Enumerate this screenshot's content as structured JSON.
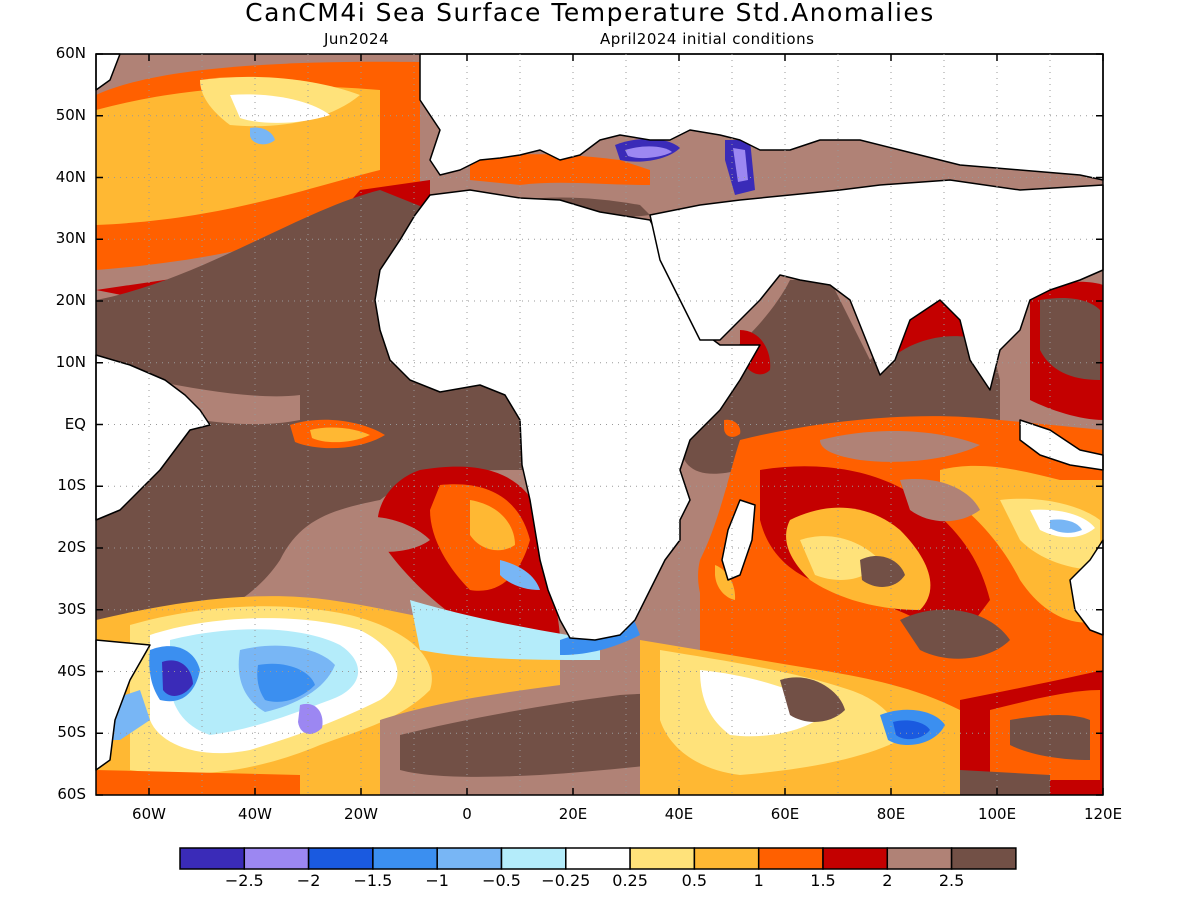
{
  "title": "CanCM4i Sea Surface Temperature Std.Anomalies",
  "valid_month": "Jun2024",
  "init_conditions": "April2024 initial conditions",
  "lat_ticks": [
    "60N",
    "50N",
    "40N",
    "30N",
    "20N",
    "10N",
    "EQ",
    "10S",
    "20S",
    "30S",
    "40S",
    "50S",
    "60S"
  ],
  "lon_ticks": [
    "60W",
    "40W",
    "20W",
    "0",
    "20E",
    "40E",
    "60E",
    "80E",
    "100E",
    "120E"
  ],
  "colorbar": {
    "colors": [
      "#3a2bb8",
      "#9c87f2",
      "#1a5ae0",
      "#3b8ff0",
      "#78b6f5",
      "#b4ecfa",
      "#ffffff",
      "#ffe27a",
      "#ffb833",
      "#ff6000",
      "#c40000",
      "#b08276",
      "#725046"
    ],
    "labels": [
      "−2.5",
      "−2",
      "−1.5",
      "−1",
      "−0.5",
      "−0.25",
      "0.25",
      "0.5",
      "1",
      "1.5",
      "2",
      "2.5"
    ]
  },
  "map": {
    "projection": "equirectangular",
    "lon_range": [
      -70,
      120
    ],
    "lat_range": [
      -60,
      60
    ]
  }
}
